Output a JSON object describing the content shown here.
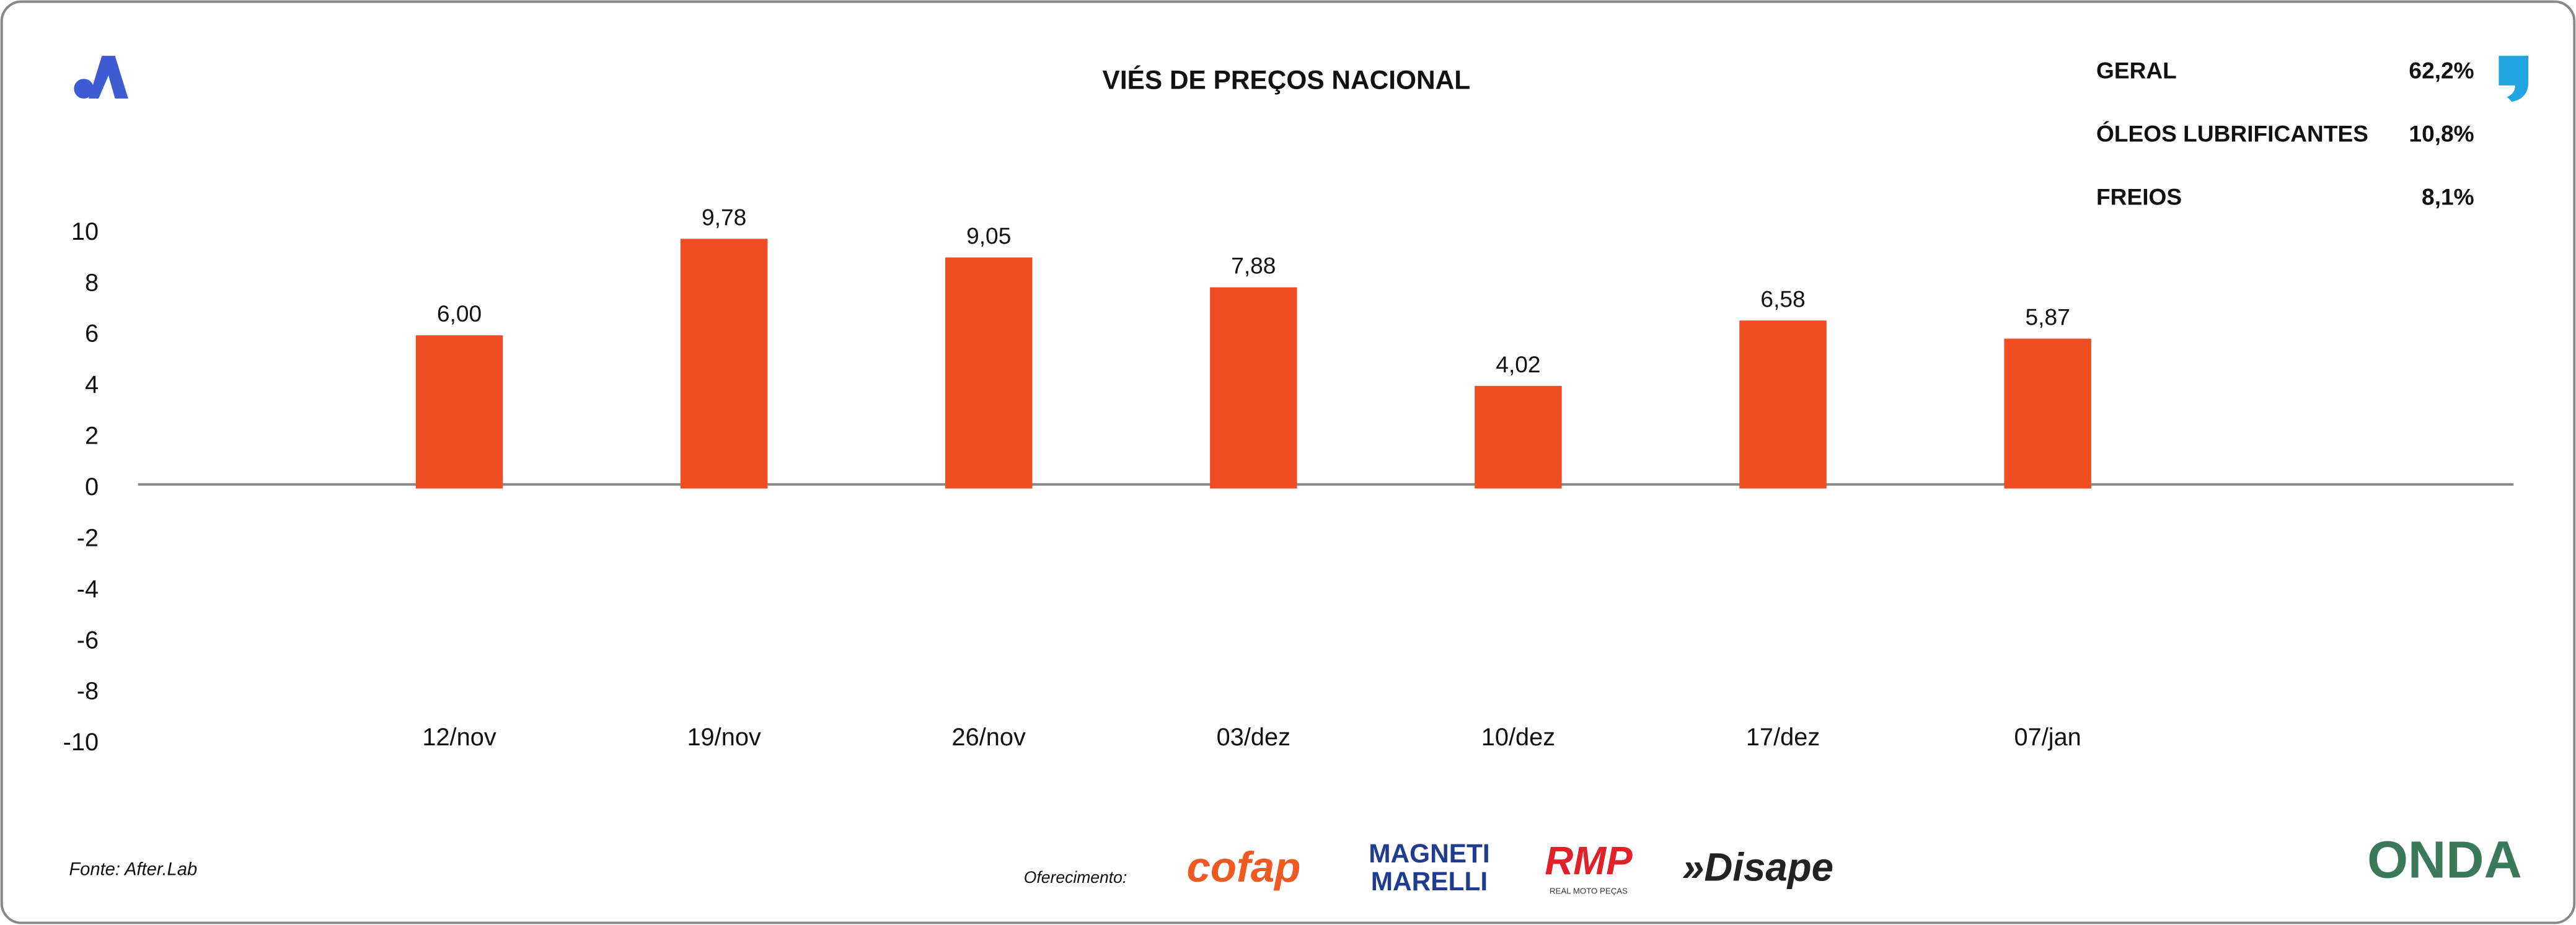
{
  "chart_data": {
    "type": "bar",
    "title": "VIÉS DE PREÇOS NACIONAL",
    "categories": [
      "12/nov",
      "19/nov",
      "26/nov",
      "03/dez",
      "10/dez",
      "17/dez",
      "07/jan"
    ],
    "values": [
      6.0,
      9.78,
      9.05,
      7.88,
      4.02,
      6.58,
      5.87
    ],
    "value_labels": [
      "6,00",
      "9,78",
      "9,05",
      "7,88",
      "4,02",
      "6,58",
      "5,87"
    ],
    "color": "#ef4e23",
    "ylim": [
      -10,
      10
    ],
    "yticks": [
      -10,
      -8,
      -6,
      -4,
      -2,
      0,
      2,
      4,
      6,
      8,
      10
    ],
    "grid": false
  },
  "stats": [
    {
      "label": "GERAL",
      "value": "62,2%"
    },
    {
      "label": "ÓLEOS LUBRIFICANTES",
      "value": "10,8%"
    },
    {
      "label": "FREIOS",
      "value": "8,1%"
    }
  ],
  "source": "Fonte: After.Lab",
  "sponsor_label": "Oferecimento:",
  "sponsors": [
    "cofap",
    "MAGNETI",
    "MARELLI",
    "RMP",
    "REAL MOTO PEÇAS",
    "»Disape"
  ],
  "brand": "ONDA"
}
